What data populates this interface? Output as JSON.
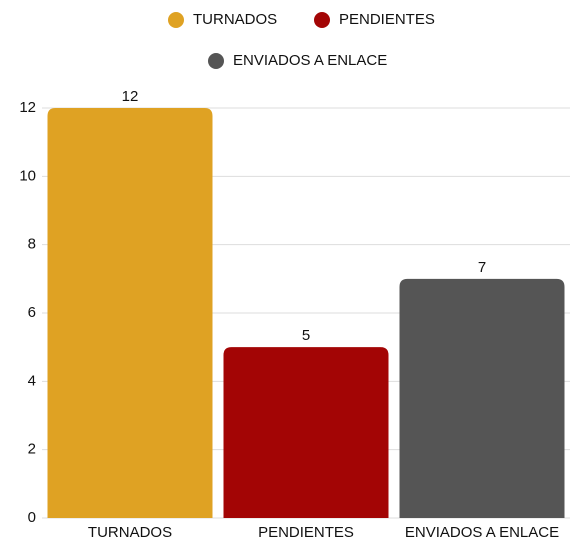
{
  "chart_data": {
    "type": "bar",
    "categories": [
      "TURNADOS",
      "PENDIENTES",
      "ENVIADOS A ENLACE"
    ],
    "values": [
      12,
      5,
      7
    ],
    "colors": [
      "#dfa223",
      "#a30505",
      "#555555"
    ],
    "ylim": [
      0,
      12
    ],
    "yticks": [
      0,
      2,
      4,
      6,
      8,
      10,
      12
    ],
    "grid": true,
    "legend": "top"
  }
}
